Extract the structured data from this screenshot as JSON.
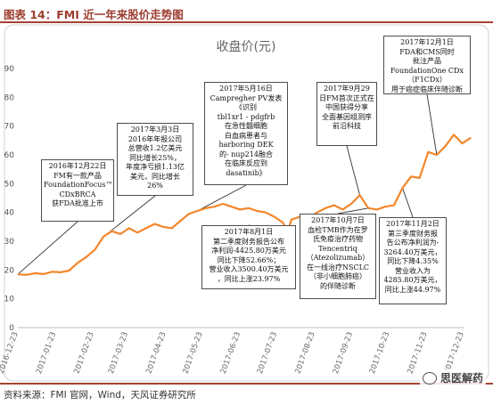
{
  "figure": {
    "title": "图表 14：FMI 近一年来股价走势图",
    "source": "资料来源：FMI 官网，Wind，天风证券研究所",
    "watermark": "思医解药"
  },
  "chart_data": {
    "type": "line",
    "title": "收盘价(元)",
    "ylim": [
      0,
      90
    ],
    "yticks": [
      0,
      10,
      20,
      30,
      40,
      50,
      60,
      70,
      80,
      90
    ],
    "grid": false,
    "line_color": "#f4862a",
    "xticks": [
      "2016-12-23",
      "2017-01-23",
      "2017-02-23",
      "2017-03-23",
      "2017-04-23",
      "2017-05-23",
      "2017-06-23",
      "2017-07-23",
      "2017-08-23",
      "2017-09-23",
      "2017-10-23",
      "2017-11-23",
      "2017-12-23"
    ],
    "x": [
      "2016-12-23",
      "2016-12-30",
      "2017-01-06",
      "2017-01-13",
      "2017-01-20",
      "2017-01-27",
      "2017-02-03",
      "2017-02-10",
      "2017-02-17",
      "2017-02-24",
      "2017-03-03",
      "2017-03-10",
      "2017-03-17",
      "2017-03-24",
      "2017-03-31",
      "2017-04-07",
      "2017-04-14",
      "2017-04-21",
      "2017-04-28",
      "2017-05-05",
      "2017-05-12",
      "2017-05-19",
      "2017-05-26",
      "2017-06-02",
      "2017-06-09",
      "2017-06-16",
      "2017-06-23",
      "2017-06-30",
      "2017-07-07",
      "2017-07-14",
      "2017-07-21",
      "2017-07-28",
      "2017-08-01",
      "2017-08-04",
      "2017-08-11",
      "2017-08-18",
      "2017-08-25",
      "2017-09-01",
      "2017-09-08",
      "2017-09-15",
      "2017-09-22",
      "2017-09-29",
      "2017-10-06",
      "2017-10-13",
      "2017-10-20",
      "2017-10-27",
      "2017-11-03",
      "2017-11-10",
      "2017-11-17",
      "2017-11-24",
      "2017-12-01",
      "2017-12-08",
      "2017-12-15",
      "2017-12-22",
      "2017-12-29"
    ],
    "values": [
      18.5,
      18.3,
      18.9,
      18.6,
      19.4,
      19.2,
      19.8,
      22.5,
      24.5,
      27.0,
      31.5,
      33.5,
      32.5,
      34.5,
      33.0,
      34.5,
      36.0,
      35.0,
      34.5,
      37.0,
      39.5,
      40.5,
      41.5,
      42.0,
      43.0,
      42.0,
      41.0,
      41.5,
      40.5,
      40.0,
      38.5,
      36.5,
      33.0,
      37.5,
      38.5,
      38.0,
      40.0,
      41.5,
      42.5,
      41.0,
      43.0,
      46.0,
      41.5,
      41.0,
      42.0,
      42.5,
      48.5,
      52.5,
      52.0,
      61.0,
      60.0,
      63.0,
      67.0,
      64.0,
      66.0
    ],
    "annotations": [
      {
        "date": "2016-12-22",
        "text": "2016年12月22日\nFM有一款产品\nFoundationFocus™\nCDxBRCA\n获FDA批准上市"
      },
      {
        "date": "2017-03-03",
        "text": "2017年3月3日\n2016年年报公司\n总营收1.2亿美元\n同比增长25%，\n年度净亏损1.13亿\n美元，同比增长\n26%"
      },
      {
        "date": "2017-05-16",
        "text": "2017年5月16日\nCampregher PV发表\n《识别\ntbl1xr1 - pdgfrb\n在急性髓细胞\n白血病患者与\nharboring DEK\n的- nup214融合\n在临床反应到\ndasatinib》"
      },
      {
        "date": "2017-08-01",
        "text": "2017年8月1日\n第二季度财务报告公布\n净利润-4425.80万美元\n同比下降52.66%；\n营业收入3500.40万美元\n，同比上涨23.97%"
      },
      {
        "date": "2017-09-29",
        "text": "2017年9月29\n日FM首次正式在\n中国获得分享\n全面基因组测序\n前沿科技"
      },
      {
        "date": "2017-10-07",
        "text": "2017年10月7日\n血检TMB作为在罗\n氏免疫治疗药物\nTencentriq\n（Atezolizumab）\n在一线治疗NSCLC\n（非小细胞肺癌）\n的伴随诊断"
      },
      {
        "date": "2017-11-02",
        "text": "2017年11月2日\n第三季度财务报\n告公布净利润为-\n3264.40万美元，\n同比下降4.35%\n营业收入为\n4285.80万美元，\n同比上涨44.97%"
      },
      {
        "date": "2017-12-01",
        "text": "2017年12月1日\nFDA和CMS同时\n批注产品\nFoundationOne CDx\n（F1CDx）\n用于癌症临床伴随诊断"
      }
    ]
  }
}
